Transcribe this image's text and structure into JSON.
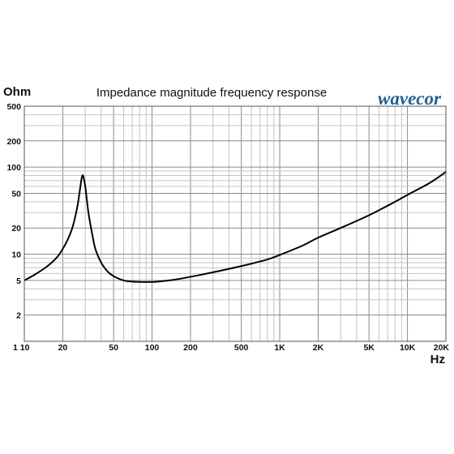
{
  "chart_data": {
    "type": "line",
    "title": "Impedance magnitude frequency response",
    "xlabel": "Hz",
    "ylabel": "Ohm",
    "xscale": "log",
    "yscale": "log",
    "xlim": [
      10,
      20000
    ],
    "ylim": [
      1,
      500
    ],
    "grid": true,
    "legend": "none",
    "logo_text": "wavecor",
    "logo_color": "#1f5f90",
    "line_color": "#000000",
    "xticks": [
      {
        "value": 10,
        "label": "1 10"
      },
      {
        "value": 20,
        "label": "20"
      },
      {
        "value": 50,
        "label": "50"
      },
      {
        "value": 100,
        "label": "100"
      },
      {
        "value": 200,
        "label": "200"
      },
      {
        "value": 500,
        "label": "500"
      },
      {
        "value": 1000,
        "label": "1K"
      },
      {
        "value": 2000,
        "label": "2K"
      },
      {
        "value": 5000,
        "label": "5K"
      },
      {
        "value": 10000,
        "label": "10K"
      },
      {
        "value": 20000,
        "label": "20K"
      }
    ],
    "yticks": [
      {
        "value": 2,
        "label": "2"
      },
      {
        "value": 5,
        "label": "5"
      },
      {
        "value": 10,
        "label": "10"
      },
      {
        "value": 20,
        "label": "20"
      },
      {
        "value": 50,
        "label": "50"
      },
      {
        "value": 100,
        "label": "100"
      },
      {
        "value": 200,
        "label": "200"
      },
      {
        "value": 500,
        "label": "500"
      }
    ],
    "series": [
      {
        "x": [
          10,
          12,
          15,
          18,
          20,
          22,
          24,
          26,
          27,
          28,
          28.5,
          29,
          30,
          31,
          32,
          34,
          36,
          40,
          45,
          50,
          60,
          70,
          80,
          100,
          120,
          150,
          200,
          300,
          500,
          800,
          1000,
          1500,
          2000,
          3000,
          5000,
          8000,
          10000,
          15000,
          20000
        ],
        "y": [
          5.0,
          5.8,
          7.2,
          9.2,
          11.5,
          15,
          21,
          35,
          50,
          72,
          80,
          78,
          60,
          40,
          28,
          17,
          11.5,
          8,
          6.3,
          5.6,
          5.0,
          4.85,
          4.8,
          4.8,
          4.9,
          5.1,
          5.5,
          6.2,
          7.3,
          8.7,
          9.8,
          12.5,
          15.5,
          20,
          28,
          40,
          48,
          66,
          88
        ]
      }
    ]
  }
}
